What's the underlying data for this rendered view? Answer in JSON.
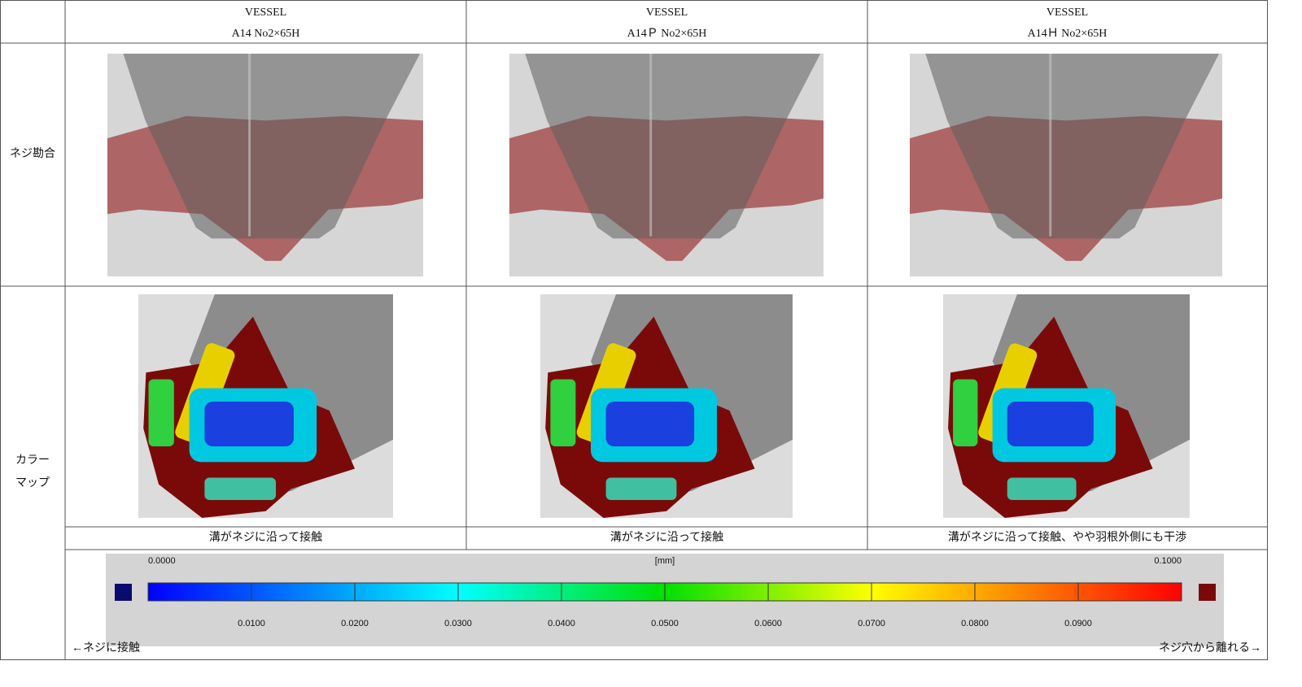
{
  "table": {
    "columns": [
      {
        "line1": "VESSEL",
        "line2": "A14 No2×65H",
        "caption": "溝がネジに沿って接触"
      },
      {
        "line1": "VESSEL",
        "line2": "A14Ｐ No2×65H",
        "caption": "溝がネジに沿って接触"
      },
      {
        "line1": "VESSEL",
        "line2": "A14Ｈ No2×65H",
        "caption": "溝がネジに沿って接触、やや羽根外側にも干渉"
      }
    ],
    "rows": [
      {
        "label": [
          "ネジ勘合"
        ]
      },
      {
        "label": [
          "カラー",
          "マップ"
        ]
      }
    ],
    "legend": {
      "min": "0.0000",
      "max": "0.1000",
      "unit": "[mm]",
      "ticks": [
        "0.0100",
        "0.0200",
        "0.0300",
        "0.0400",
        "0.0500",
        "0.0600",
        "0.0700",
        "0.0800",
        "0.0900"
      ],
      "left_note": "←ネジに接触",
      "right_note": "ネジ穴から離れる→"
    }
  }
}
